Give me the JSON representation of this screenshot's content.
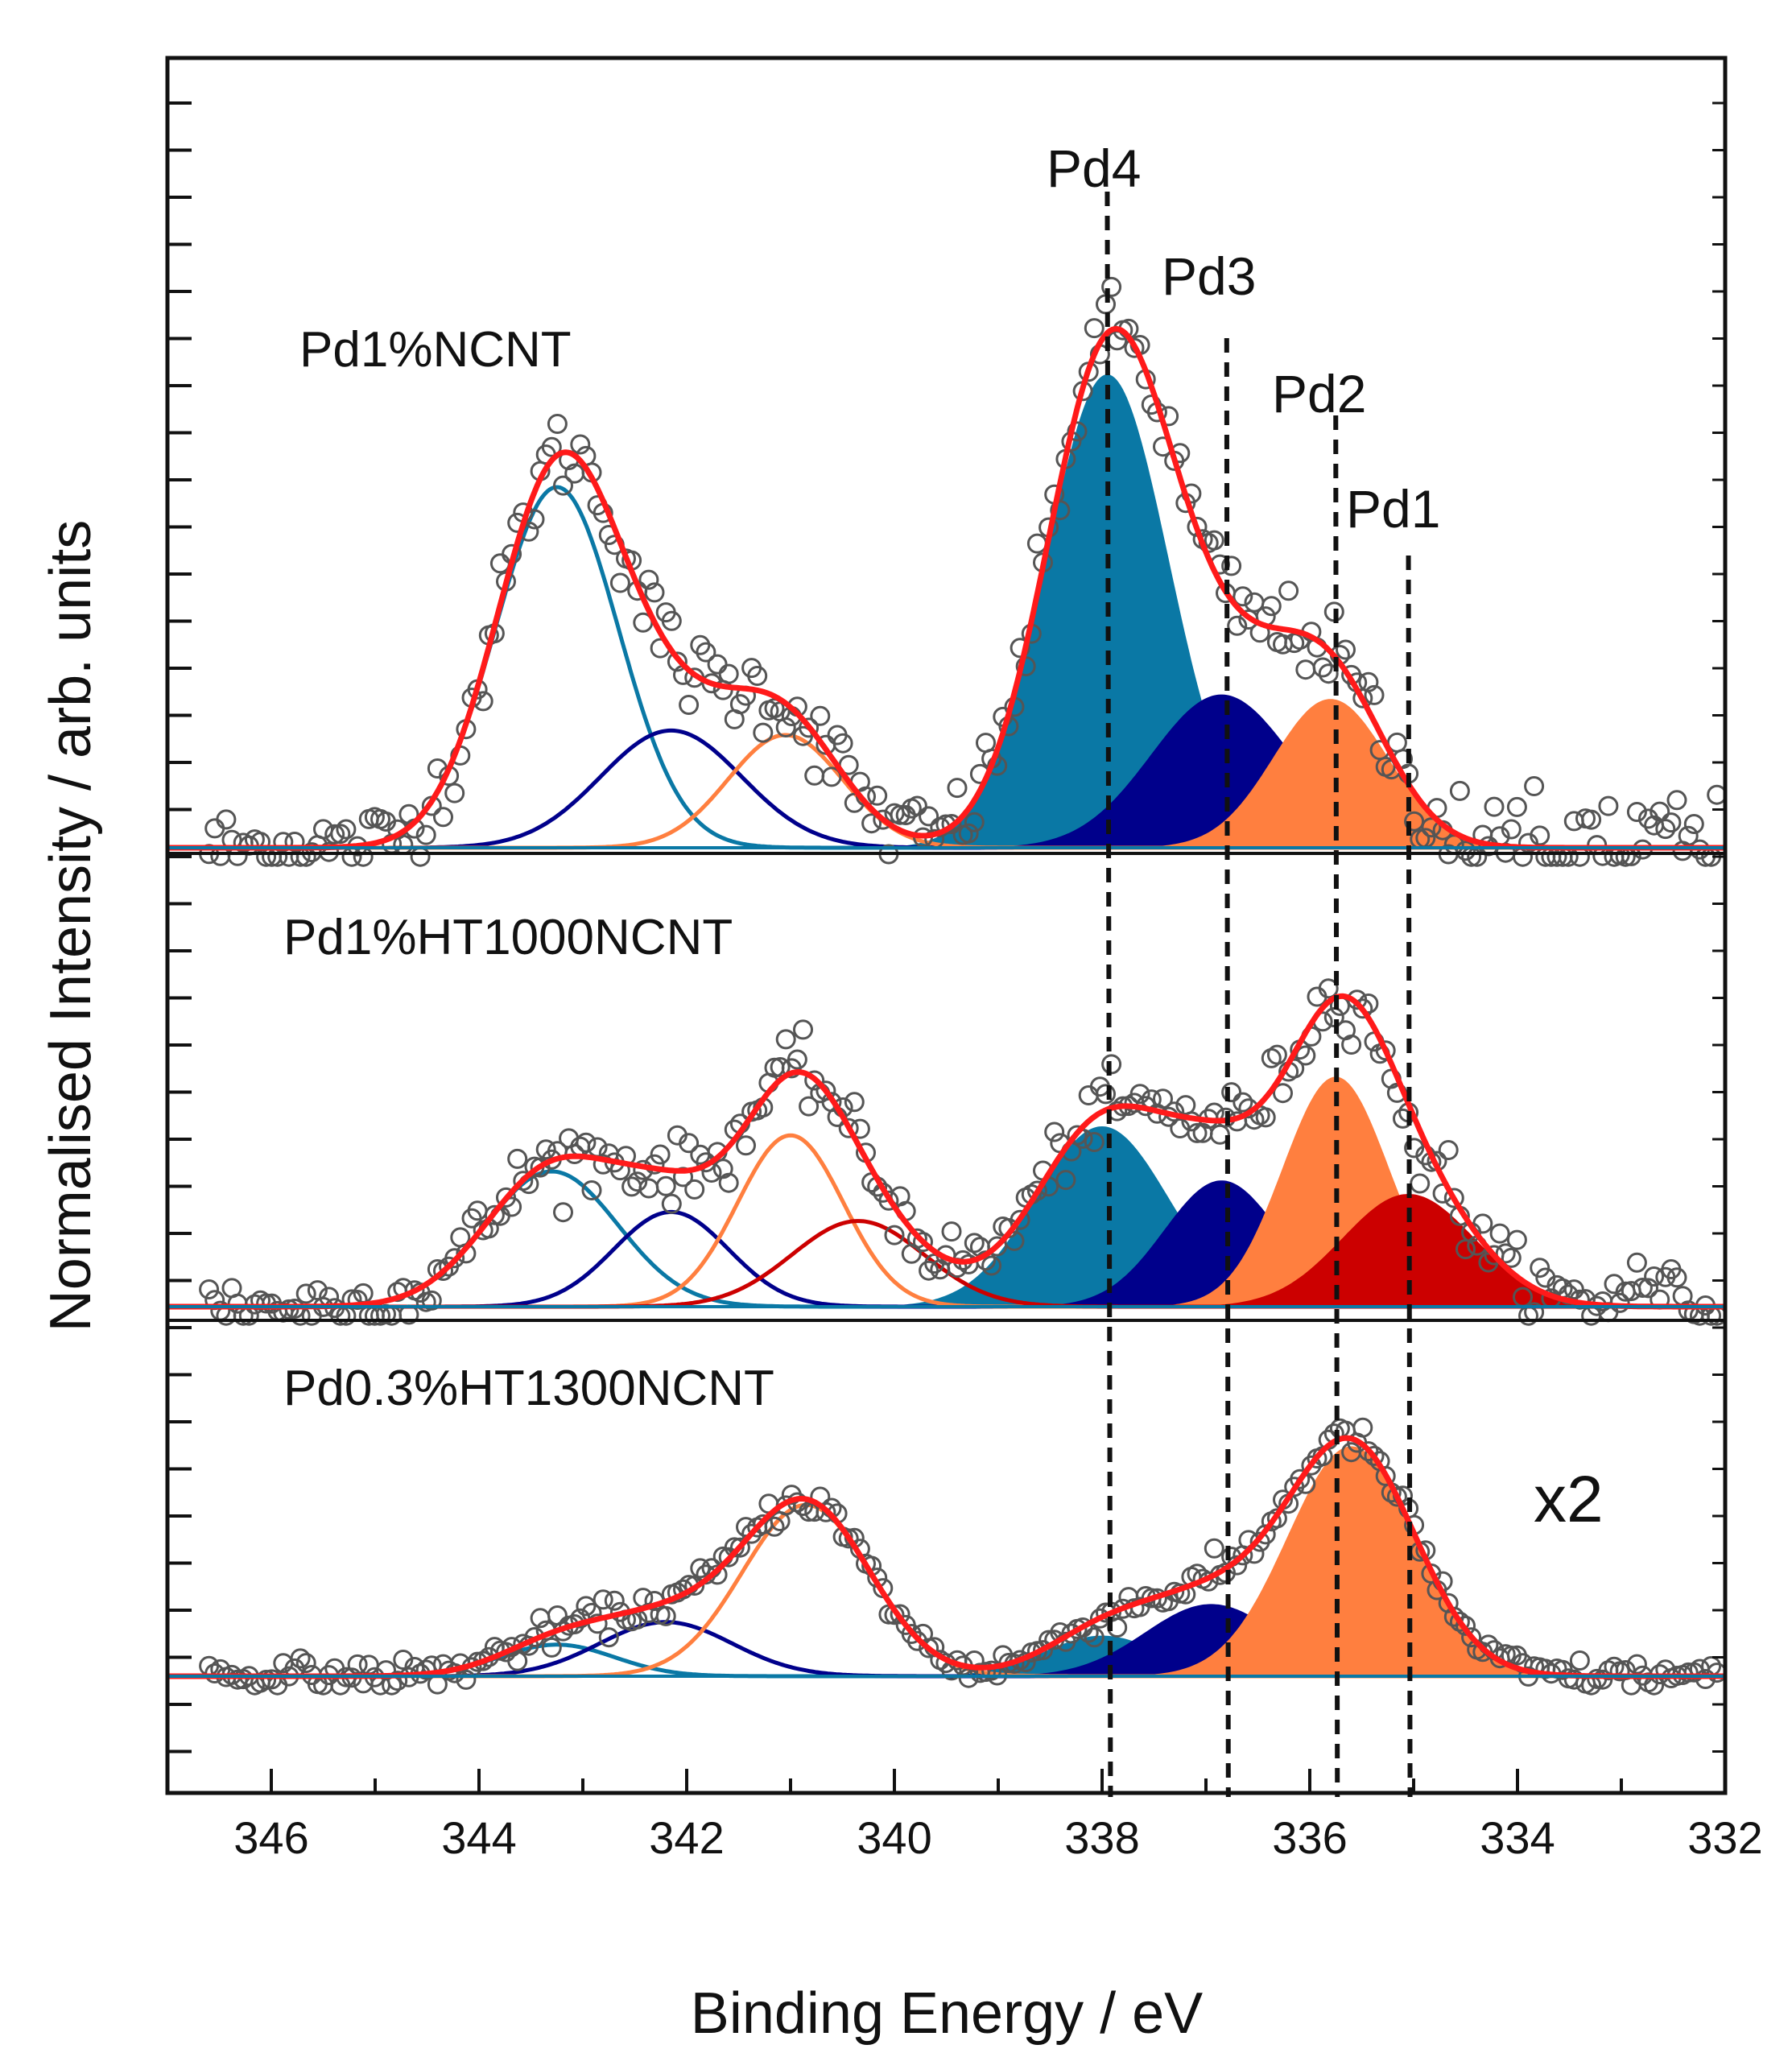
{
  "chart_data": {
    "type": "line",
    "title": "",
    "xlabel": "Binding Energy / eV",
    "ylabel": "Normalised Intensity / arb. units",
    "xlim": [
      347,
      332
    ],
    "x_reversed": true,
    "xticks": [
      346,
      344,
      342,
      340,
      338,
      336,
      334,
      332
    ],
    "yticks_shown": false,
    "grid": false,
    "colors": {
      "pd4": "#0a78a5",
      "pd3": "#00008b",
      "pd2": "#ff7f3f",
      "pd1": "#cc0000",
      "envelope": "#ff1a1a",
      "data_points": "#555555",
      "axes": "#111111"
    },
    "reference_lines": [
      {
        "label": "Pd4",
        "x": 337.95
      },
      {
        "label": "Pd3",
        "x": 336.8
      },
      {
        "label": "Pd2",
        "x": 335.75
      },
      {
        "label": "Pd1",
        "x": 335.05
      }
    ],
    "panels": [
      {
        "label": "Pd1%NCNT",
        "scale_note": "",
        "baseline": 0.0,
        "components": [
          {
            "name": "Pd4",
            "center": 337.95,
            "height": 1.05,
            "fwhm": 1.4,
            "shoulder": {
              "center": 343.25,
              "height": 0.8
            }
          },
          {
            "name": "Pd3",
            "center": 336.85,
            "height": 0.34,
            "fwhm": 1.6,
            "shoulder": {
              "center": 342.15,
              "height": 0.26
            }
          },
          {
            "name": "Pd2",
            "center": 335.8,
            "height": 0.33,
            "fwhm": 1.3,
            "shoulder": {
              "center": 341.05,
              "height": 0.25
            }
          }
        ],
        "data_noise": 0.045,
        "data_extra_low_be": 0.06
      },
      {
        "label": "Pd1%HT1000NCNT",
        "scale_note": "",
        "baseline": 0.0,
        "components": [
          {
            "name": "Pd4",
            "center": 338.0,
            "height": 0.4,
            "fwhm": 1.5,
            "shoulder": {
              "center": 343.3,
              "height": 0.3
            }
          },
          {
            "name": "Pd3",
            "center": 336.85,
            "height": 0.28,
            "fwhm": 1.3,
            "shoulder": {
              "center": 342.15,
              "height": 0.21
            }
          },
          {
            "name": "Pd2",
            "center": 335.75,
            "height": 0.51,
            "fwhm": 1.2,
            "shoulder": {
              "center": 341.0,
              "height": 0.38
            }
          },
          {
            "name": "Pd1",
            "center": 335.05,
            "height": 0.25,
            "fwhm": 1.5,
            "shoulder": {
              "center": 340.35,
              "height": 0.19
            }
          }
        ],
        "data_noise": 0.035,
        "data_extra_low_be": 0.0
      },
      {
        "label": "Pd0.3%HT1300NCNT",
        "scale_note": "x2",
        "baseline": 0.0,
        "components": [
          {
            "name": "Pd4",
            "center": 338.0,
            "height": 0.09,
            "fwhm": 1.3,
            "shoulder": {
              "center": 343.25,
              "height": 0.07
            }
          },
          {
            "name": "Pd3",
            "center": 336.95,
            "height": 0.16,
            "fwhm": 1.5,
            "shoulder": {
              "center": 342.2,
              "height": 0.12
            }
          },
          {
            "name": "Pd2",
            "center": 335.6,
            "height": 0.51,
            "fwhm": 1.45,
            "shoulder": {
              "center": 340.85,
              "height": 0.38
            }
          }
        ],
        "data_noise": 0.018,
        "data_extra_low_be": 0.0
      }
    ]
  }
}
